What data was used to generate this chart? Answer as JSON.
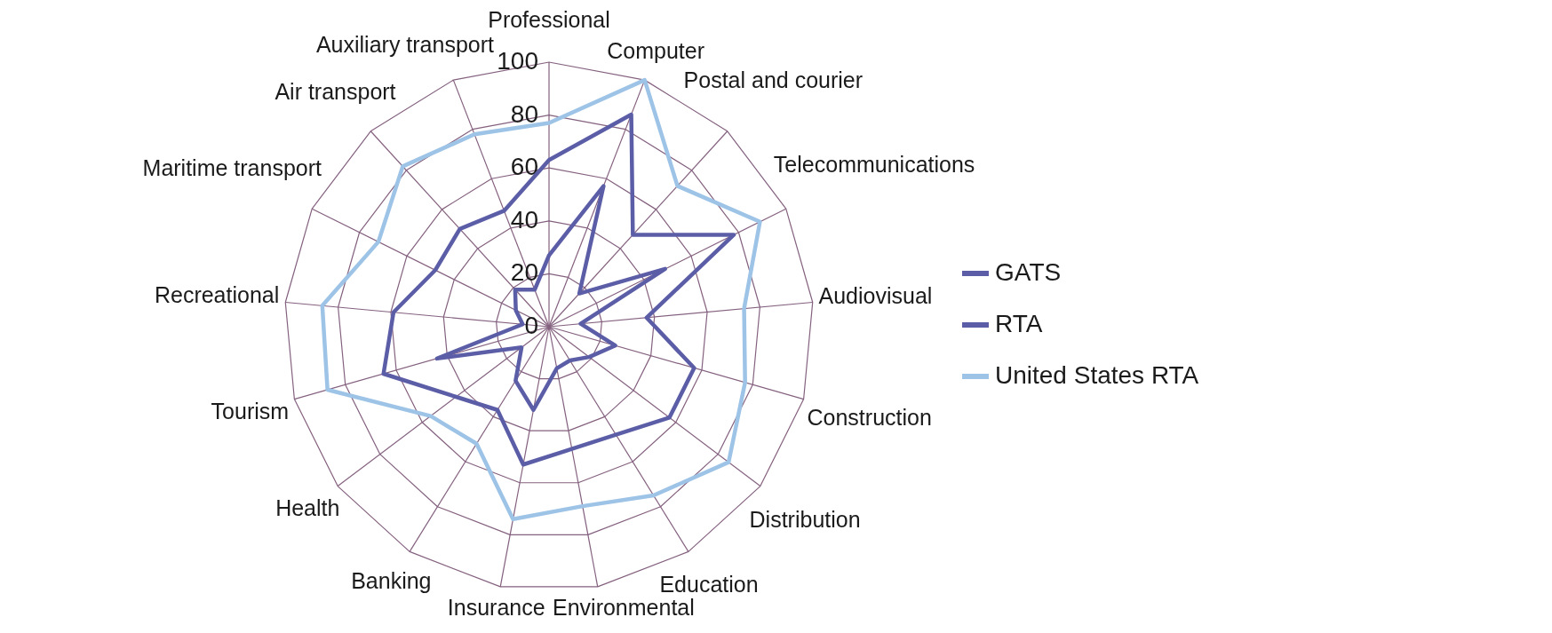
{
  "chart_data": {
    "type": "radar",
    "categories": [
      "Professional",
      "Computer",
      "Postal and courier",
      "Telecommunications",
      "Audiovisual",
      "Construction",
      "Distribution",
      "Education",
      "Environmental",
      "Insurance",
      "Banking",
      "Health",
      "Tourism",
      "Recreational",
      "Maritime transport",
      "Air transport",
      "Auxiliary transport"
    ],
    "series": [
      {
        "name": "GATS",
        "color": "#5b5ea6",
        "values": [
          27,
          57,
          17,
          49,
          12,
          26,
          19,
          15,
          16,
          32,
          24,
          13,
          44,
          10,
          14,
          19,
          15
        ]
      },
      {
        "name": "RTA",
        "color": "#5b5ea6",
        "values": [
          63,
          86,
          47,
          78,
          37,
          57,
          57,
          48,
          47,
          53,
          37,
          44,
          65,
          59,
          48,
          50,
          47
        ]
      },
      {
        "name": "United States RTA",
        "color": "#9dc3e6",
        "values": [
          77,
          100,
          72,
          89,
          74,
          77,
          85,
          75,
          69,
          74,
          52,
          56,
          87,
          86,
          72,
          82,
          78
        ]
      }
    ],
    "ylim": [
      0,
      100
    ],
    "yticks": [
      0,
      20,
      40,
      60,
      80,
      100
    ],
    "grid": true,
    "legend": "right"
  }
}
